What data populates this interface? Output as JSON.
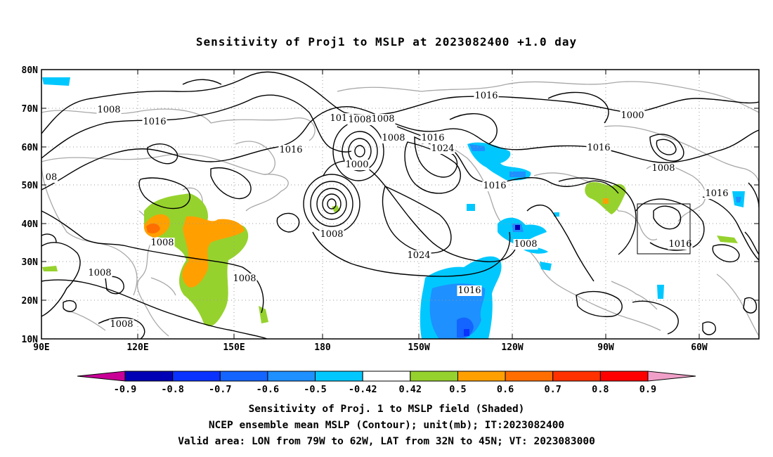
{
  "title": "Sensitivity of Proj1 to MSLP at 2023082400 +1.0 day",
  "map": {
    "lat_labels": [
      "80N",
      "70N",
      "60N",
      "50N",
      "40N",
      "30N",
      "20N",
      "10N"
    ],
    "lon_labels": [
      "90E",
      "120E",
      "150E",
      "180",
      "150W",
      "120W",
      "90W",
      "60W"
    ],
    "contour_labels": [
      {
        "text": "1008"
      },
      {
        "text": "1016"
      },
      {
        "text": "1016"
      },
      {
        "text": "1016"
      },
      {
        "text": "1008"
      },
      {
        "text": "1016"
      },
      {
        "text": "1008"
      },
      {
        "text": "1008"
      },
      {
        "text": "1000"
      },
      {
        "text": "1008"
      },
      {
        "text": "1016"
      },
      {
        "text": "1024"
      },
      {
        "text": "1016"
      },
      {
        "text": "1024"
      },
      {
        "text": "1016"
      },
      {
        "text": "1008"
      },
      {
        "text": "1000"
      },
      {
        "text": "1016"
      },
      {
        "text": "1008"
      },
      {
        "text": "1016"
      },
      {
        "text": "1016"
      },
      {
        "text": "1008"
      },
      {
        "text": "1008"
      },
      {
        "text": "1008"
      },
      {
        "text": "1008"
      },
      {
        "text": "08"
      }
    ],
    "valid_area": {
      "lon_from": "79W",
      "lon_to": "62W",
      "lat_from": "32N",
      "lat_to": "45N"
    }
  },
  "colorbar": {
    "labels": [
      "-0.9",
      "-0.8",
      "-0.7",
      "-0.6",
      "-0.5",
      "-0.42",
      "0.42",
      "0.5",
      "0.6",
      "0.7",
      "0.8",
      "0.9"
    ],
    "colors": [
      "#0000b4",
      "#0a32ff",
      "#1464ff",
      "#1e90ff",
      "#00c8ff",
      "#ffffff",
      "#96d22d",
      "#ffa000",
      "#ff6e00",
      "#ff3200",
      "#ff0000"
    ],
    "low_cap_color": "#c80096",
    "high_cap_color": "#f0a0c8"
  },
  "captions": {
    "line1": "Sensitivity of Proj. 1 to MSLP field (Shaded)",
    "line2": "NCEP ensemble mean MSLP (Contour); unit(mb); IT:2023082400",
    "line3": "Valid area: LON from 79W to 62W, LAT from 32N to 45N; VT: 2023083000"
  }
}
